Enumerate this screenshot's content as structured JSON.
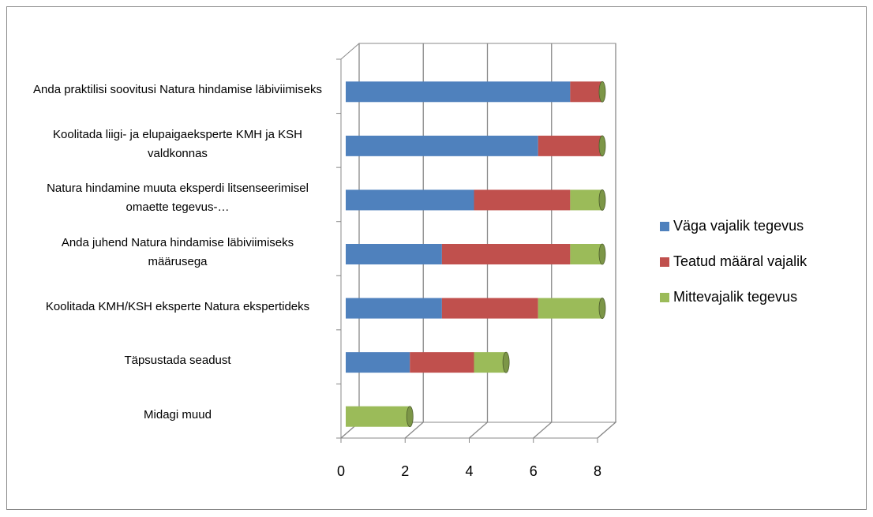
{
  "chart_data": {
    "type": "bar",
    "orientation": "horizontal",
    "stacked": true,
    "categories": [
      "Anda praktilisi soovitusi Natura hindamise läbiviimiseks",
      "Koolitada liigi- ja elupaigaeksperte KMH ja KSH valdkonnas",
      "Natura hindamine muuta eksperdi litsenseerimisel omaette tegevus-…",
      "Anda juhend Natura hindamise läbiviimiseks määrusega",
      "Koolitada KMH/KSH eksperte Natura ekspertideks",
      "Täpsustada seadust",
      "Midagi muud"
    ],
    "series": [
      {
        "name": "Väga vajalik tegevus",
        "color": "#4f81bd",
        "values": [
          7,
          6,
          4,
          3,
          3,
          2,
          0
        ]
      },
      {
        "name": "Teatud määral vajalik",
        "color": "#c0504d",
        "values": [
          1,
          2,
          3,
          4,
          3,
          2,
          0
        ]
      },
      {
        "name": "Mittevajalik tegevus",
        "color": "#9bbb59",
        "values": [
          0,
          0,
          1,
          1,
          2,
          1,
          2
        ]
      }
    ],
    "xlim": [
      0,
      8
    ],
    "xticks": [
      0,
      2,
      4,
      6,
      8
    ],
    "grid": true,
    "legend": "right"
  }
}
